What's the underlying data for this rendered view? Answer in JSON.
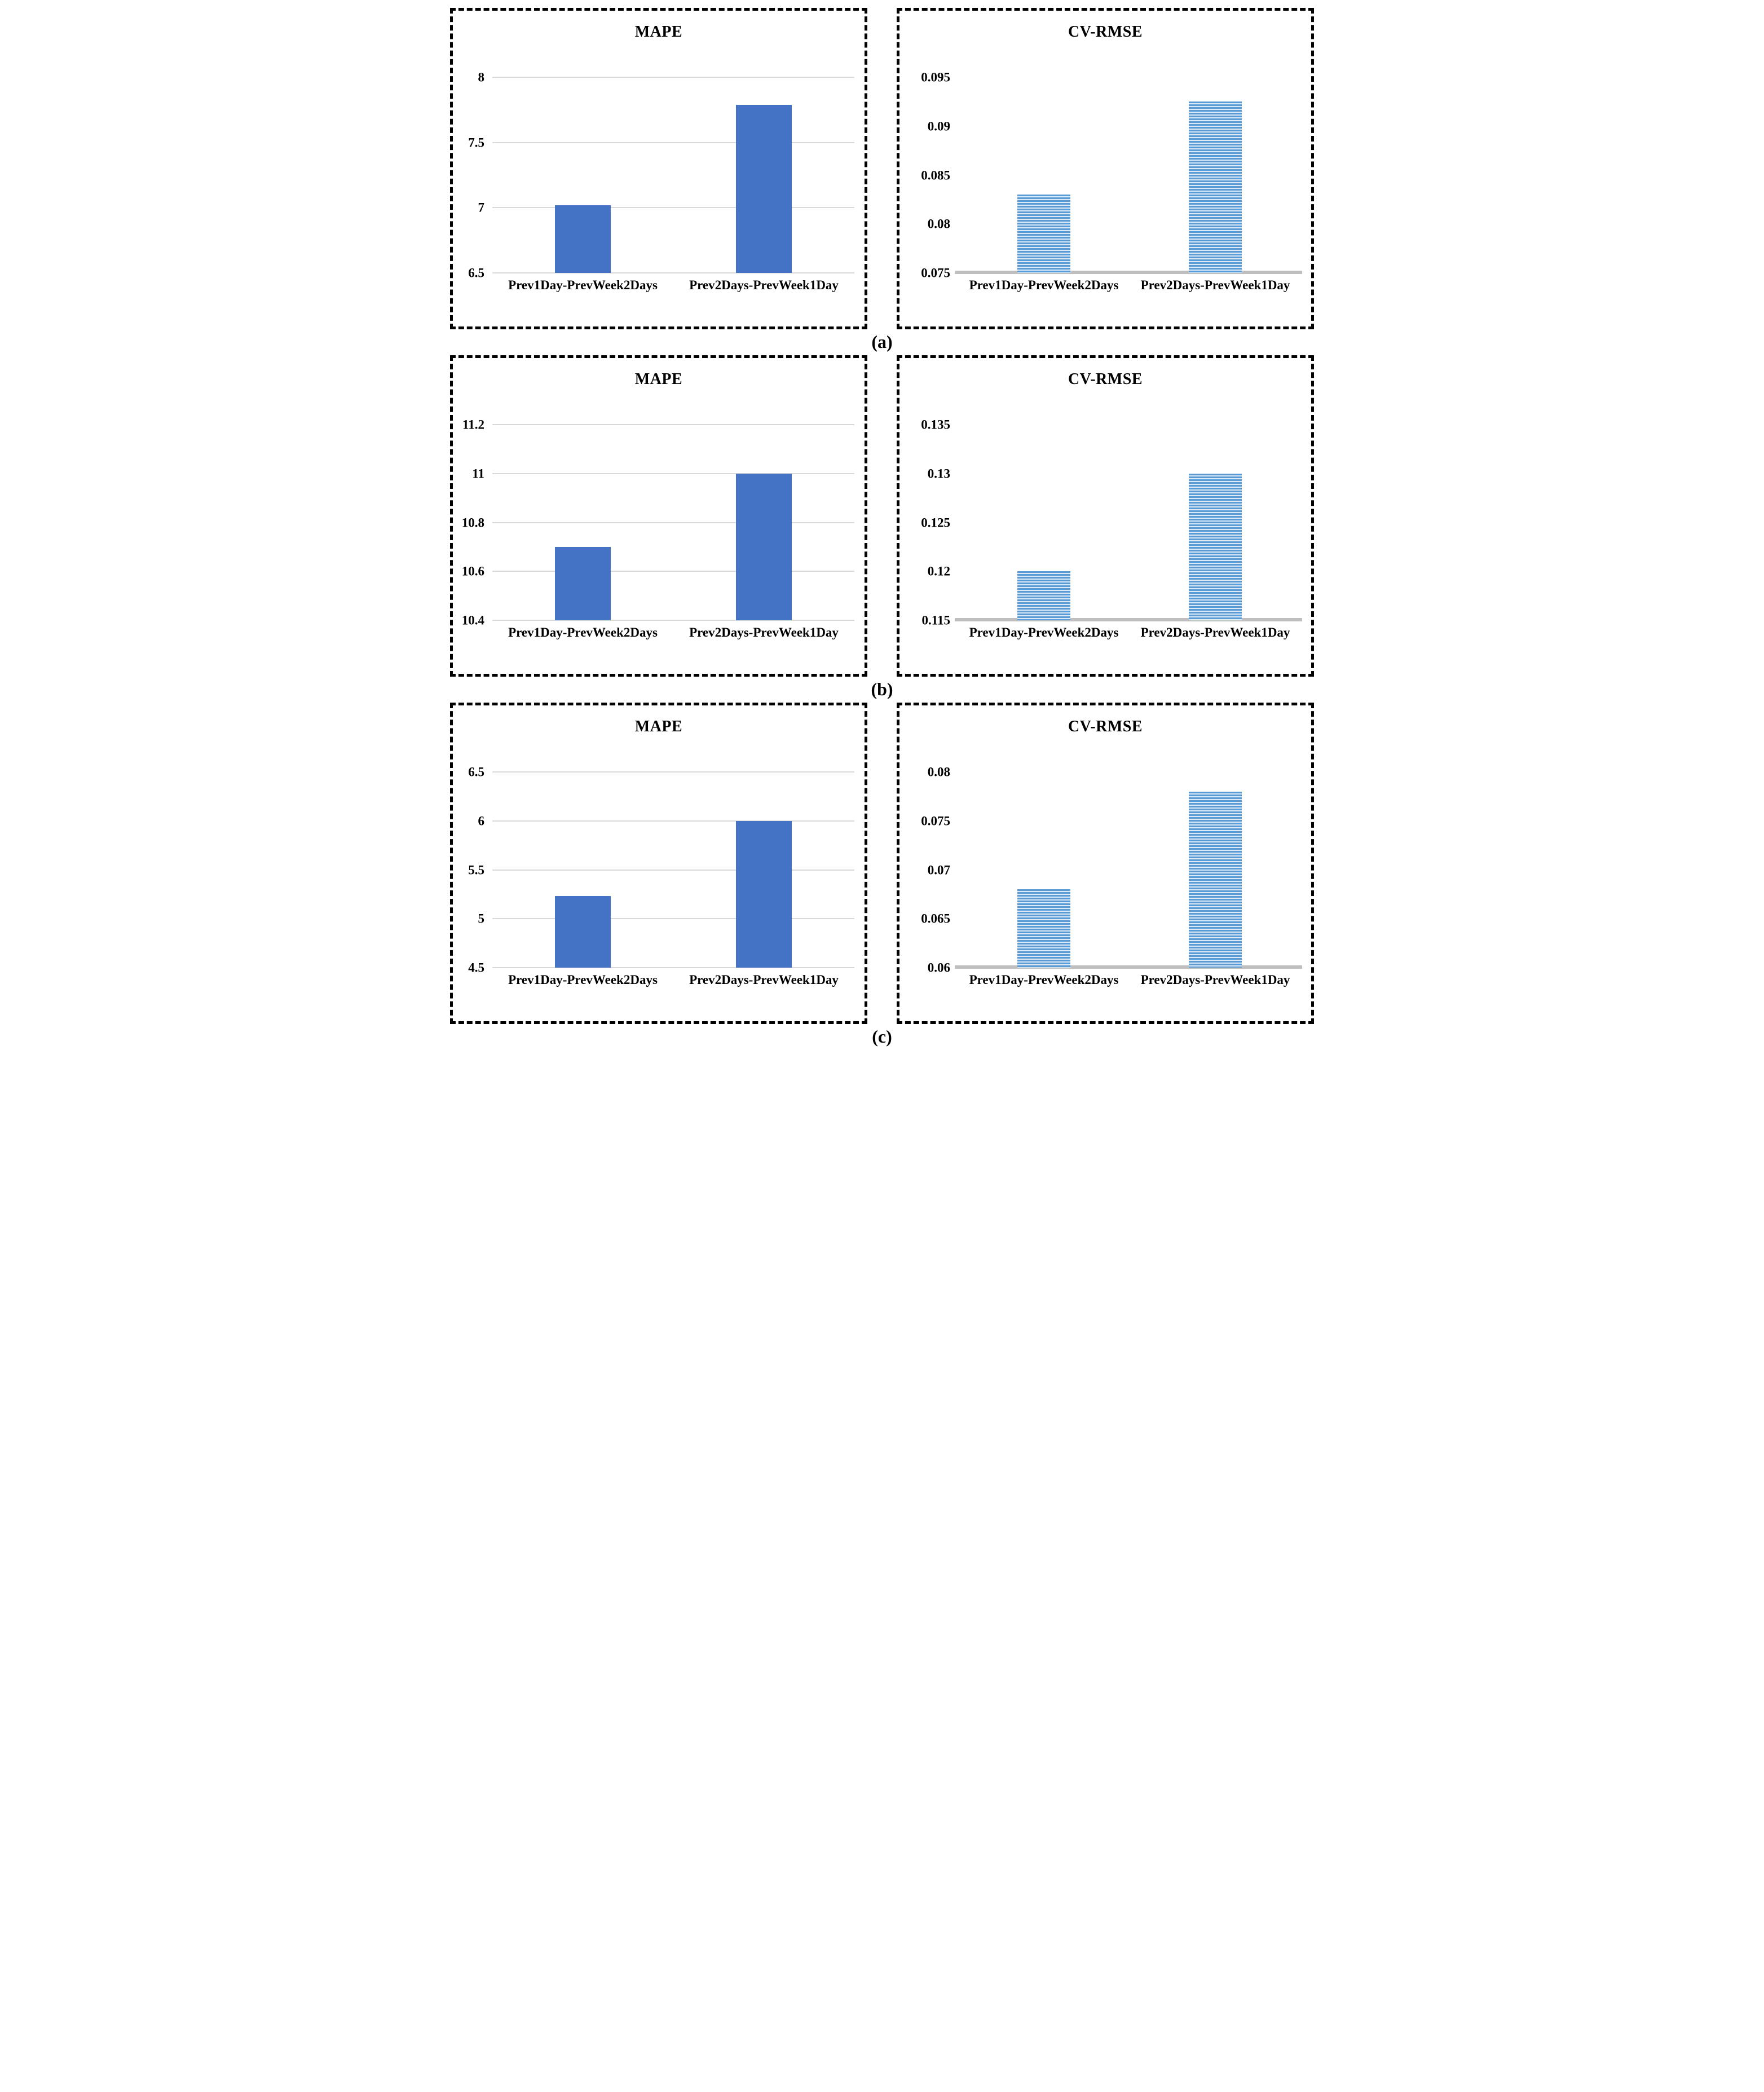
{
  "figure": {
    "row_labels": [
      "(a)",
      "(b)",
      "(c)"
    ]
  },
  "colors": {
    "solid_bar": "#4472C4",
    "striped_bar_dark": "#5B9BD5",
    "striped_bar_light": "#DCE9F7",
    "gridline": "#D9D9D9",
    "axis_line": "#BFBFBF",
    "panel_border": "#000000"
  },
  "chart_data": [
    {
      "panel": "a",
      "type": "bar",
      "title": "MAPE",
      "categories": [
        "Prev1Day-PrevWeek2Days",
        "Prev2Days-PrevWeek1Day"
      ],
      "values": [
        7.02,
        7.79
      ],
      "ylim": [
        6.5,
        8
      ],
      "ytick_values": [
        6.5,
        7,
        7.5,
        8
      ],
      "ytick_labels": [
        "6.5",
        "7",
        "7.5",
        "8"
      ],
      "bar_style": "solid",
      "gridlines": true,
      "axis_line": false,
      "legend": "none",
      "xlabel": "",
      "ylabel": ""
    },
    {
      "panel": "a",
      "type": "bar",
      "title": "CV-RMSE",
      "categories": [
        "Prev1Day-PrevWeek2Days",
        "Prev2Days-PrevWeek1Day"
      ],
      "values": [
        0.083,
        0.0925
      ],
      "ylim": [
        0.075,
        0.095
      ],
      "ytick_values": [
        0.075,
        0.08,
        0.085,
        0.09,
        0.095
      ],
      "ytick_labels": [
        "0.075",
        "0.08",
        "0.085",
        "0.09",
        "0.095"
      ],
      "bar_style": "striped",
      "gridlines": false,
      "axis_line": true,
      "legend": "none",
      "xlabel": "",
      "ylabel": ""
    },
    {
      "panel": "b",
      "type": "bar",
      "title": "MAPE",
      "categories": [
        "Prev1Day-PrevWeek2Days",
        "Prev2Days-PrevWeek1Day"
      ],
      "values": [
        10.7,
        11.0
      ],
      "ylim": [
        10.4,
        11.2
      ],
      "ytick_values": [
        10.4,
        10.6,
        10.8,
        11,
        11.2
      ],
      "ytick_labels": [
        "10.4",
        "10.6",
        "10.8",
        "11",
        "11.2"
      ],
      "bar_style": "solid",
      "gridlines": true,
      "axis_line": false,
      "legend": "none",
      "xlabel": "",
      "ylabel": ""
    },
    {
      "panel": "b",
      "type": "bar",
      "title": "CV-RMSE",
      "categories": [
        "Prev1Day-PrevWeek2Days",
        "Prev2Days-PrevWeek1Day"
      ],
      "values": [
        0.12,
        0.13
      ],
      "ylim": [
        0.115,
        0.135
      ],
      "ytick_values": [
        0.115,
        0.12,
        0.125,
        0.13,
        0.135
      ],
      "ytick_labels": [
        "0.115",
        "0.12",
        "0.125",
        "0.13",
        "0.135"
      ],
      "bar_style": "striped",
      "gridlines": false,
      "axis_line": true,
      "legend": "none",
      "xlabel": "",
      "ylabel": ""
    },
    {
      "panel": "c",
      "type": "bar",
      "title": "MAPE",
      "categories": [
        "Prev1Day-PrevWeek2Days",
        "Prev2Days-PrevWeek1Day"
      ],
      "values": [
        5.23,
        6.0
      ],
      "ylim": [
        4.5,
        6.5
      ],
      "ytick_values": [
        4.5,
        5,
        5.5,
        6,
        6.5
      ],
      "ytick_labels": [
        "4.5",
        "5",
        "5.5",
        "6",
        "6.5"
      ],
      "bar_style": "solid",
      "gridlines": true,
      "axis_line": false,
      "legend": "none",
      "xlabel": "",
      "ylabel": ""
    },
    {
      "panel": "c",
      "type": "bar",
      "title": "CV-RMSE",
      "categories": [
        "Prev1Day-PrevWeek2Days",
        "Prev2Days-PrevWeek1Day"
      ],
      "values": [
        0.068,
        0.078
      ],
      "ylim": [
        0.06,
        0.08
      ],
      "ytick_values": [
        0.06,
        0.065,
        0.07,
        0.075,
        0.08
      ],
      "ytick_labels": [
        "0.06",
        "0.065",
        "0.07",
        "0.075",
        "0.08"
      ],
      "bar_style": "striped",
      "gridlines": false,
      "axis_line": true,
      "legend": "none",
      "xlabel": "",
      "ylabel": ""
    }
  ]
}
